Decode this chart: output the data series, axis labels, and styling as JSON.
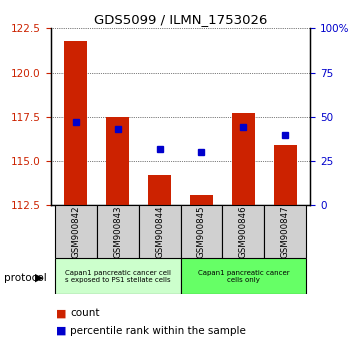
{
  "title": "GDS5099 / ILMN_1753026",
  "samples": [
    "GSM900842",
    "GSM900843",
    "GSM900844",
    "GSM900845",
    "GSM900846",
    "GSM900847"
  ],
  "count_values": [
    121.8,
    117.5,
    114.2,
    113.1,
    117.7,
    115.9
  ],
  "percentile_values": [
    47,
    43,
    32,
    30,
    44,
    40
  ],
  "ylim_left": [
    112.5,
    122.5
  ],
  "ylim_right": [
    0,
    100
  ],
  "yticks_left": [
    112.5,
    115.0,
    117.5,
    120.0,
    122.5
  ],
  "yticks_right": [
    0,
    25,
    50,
    75,
    100
  ],
  "ytick_labels_right": [
    "0",
    "25",
    "50",
    "75",
    "100%"
  ],
  "bar_color": "#cc2200",
  "dot_color": "#0000cc",
  "protocol_group1_label": "Capan1 pancreatic cancer cell\ns exposed to PS1 stellate cells",
  "protocol_group2_label": "Capan1 pancreatic cancer\ncells only",
  "protocol_group1_color": "#ccffcc",
  "protocol_group2_color": "#66ff66",
  "legend_count_label": "count",
  "legend_percentile_label": "percentile rank within the sample",
  "protocol_label": "protocol",
  "group1_indices": [
    0,
    1,
    2
  ],
  "group2_indices": [
    3,
    4,
    5
  ]
}
